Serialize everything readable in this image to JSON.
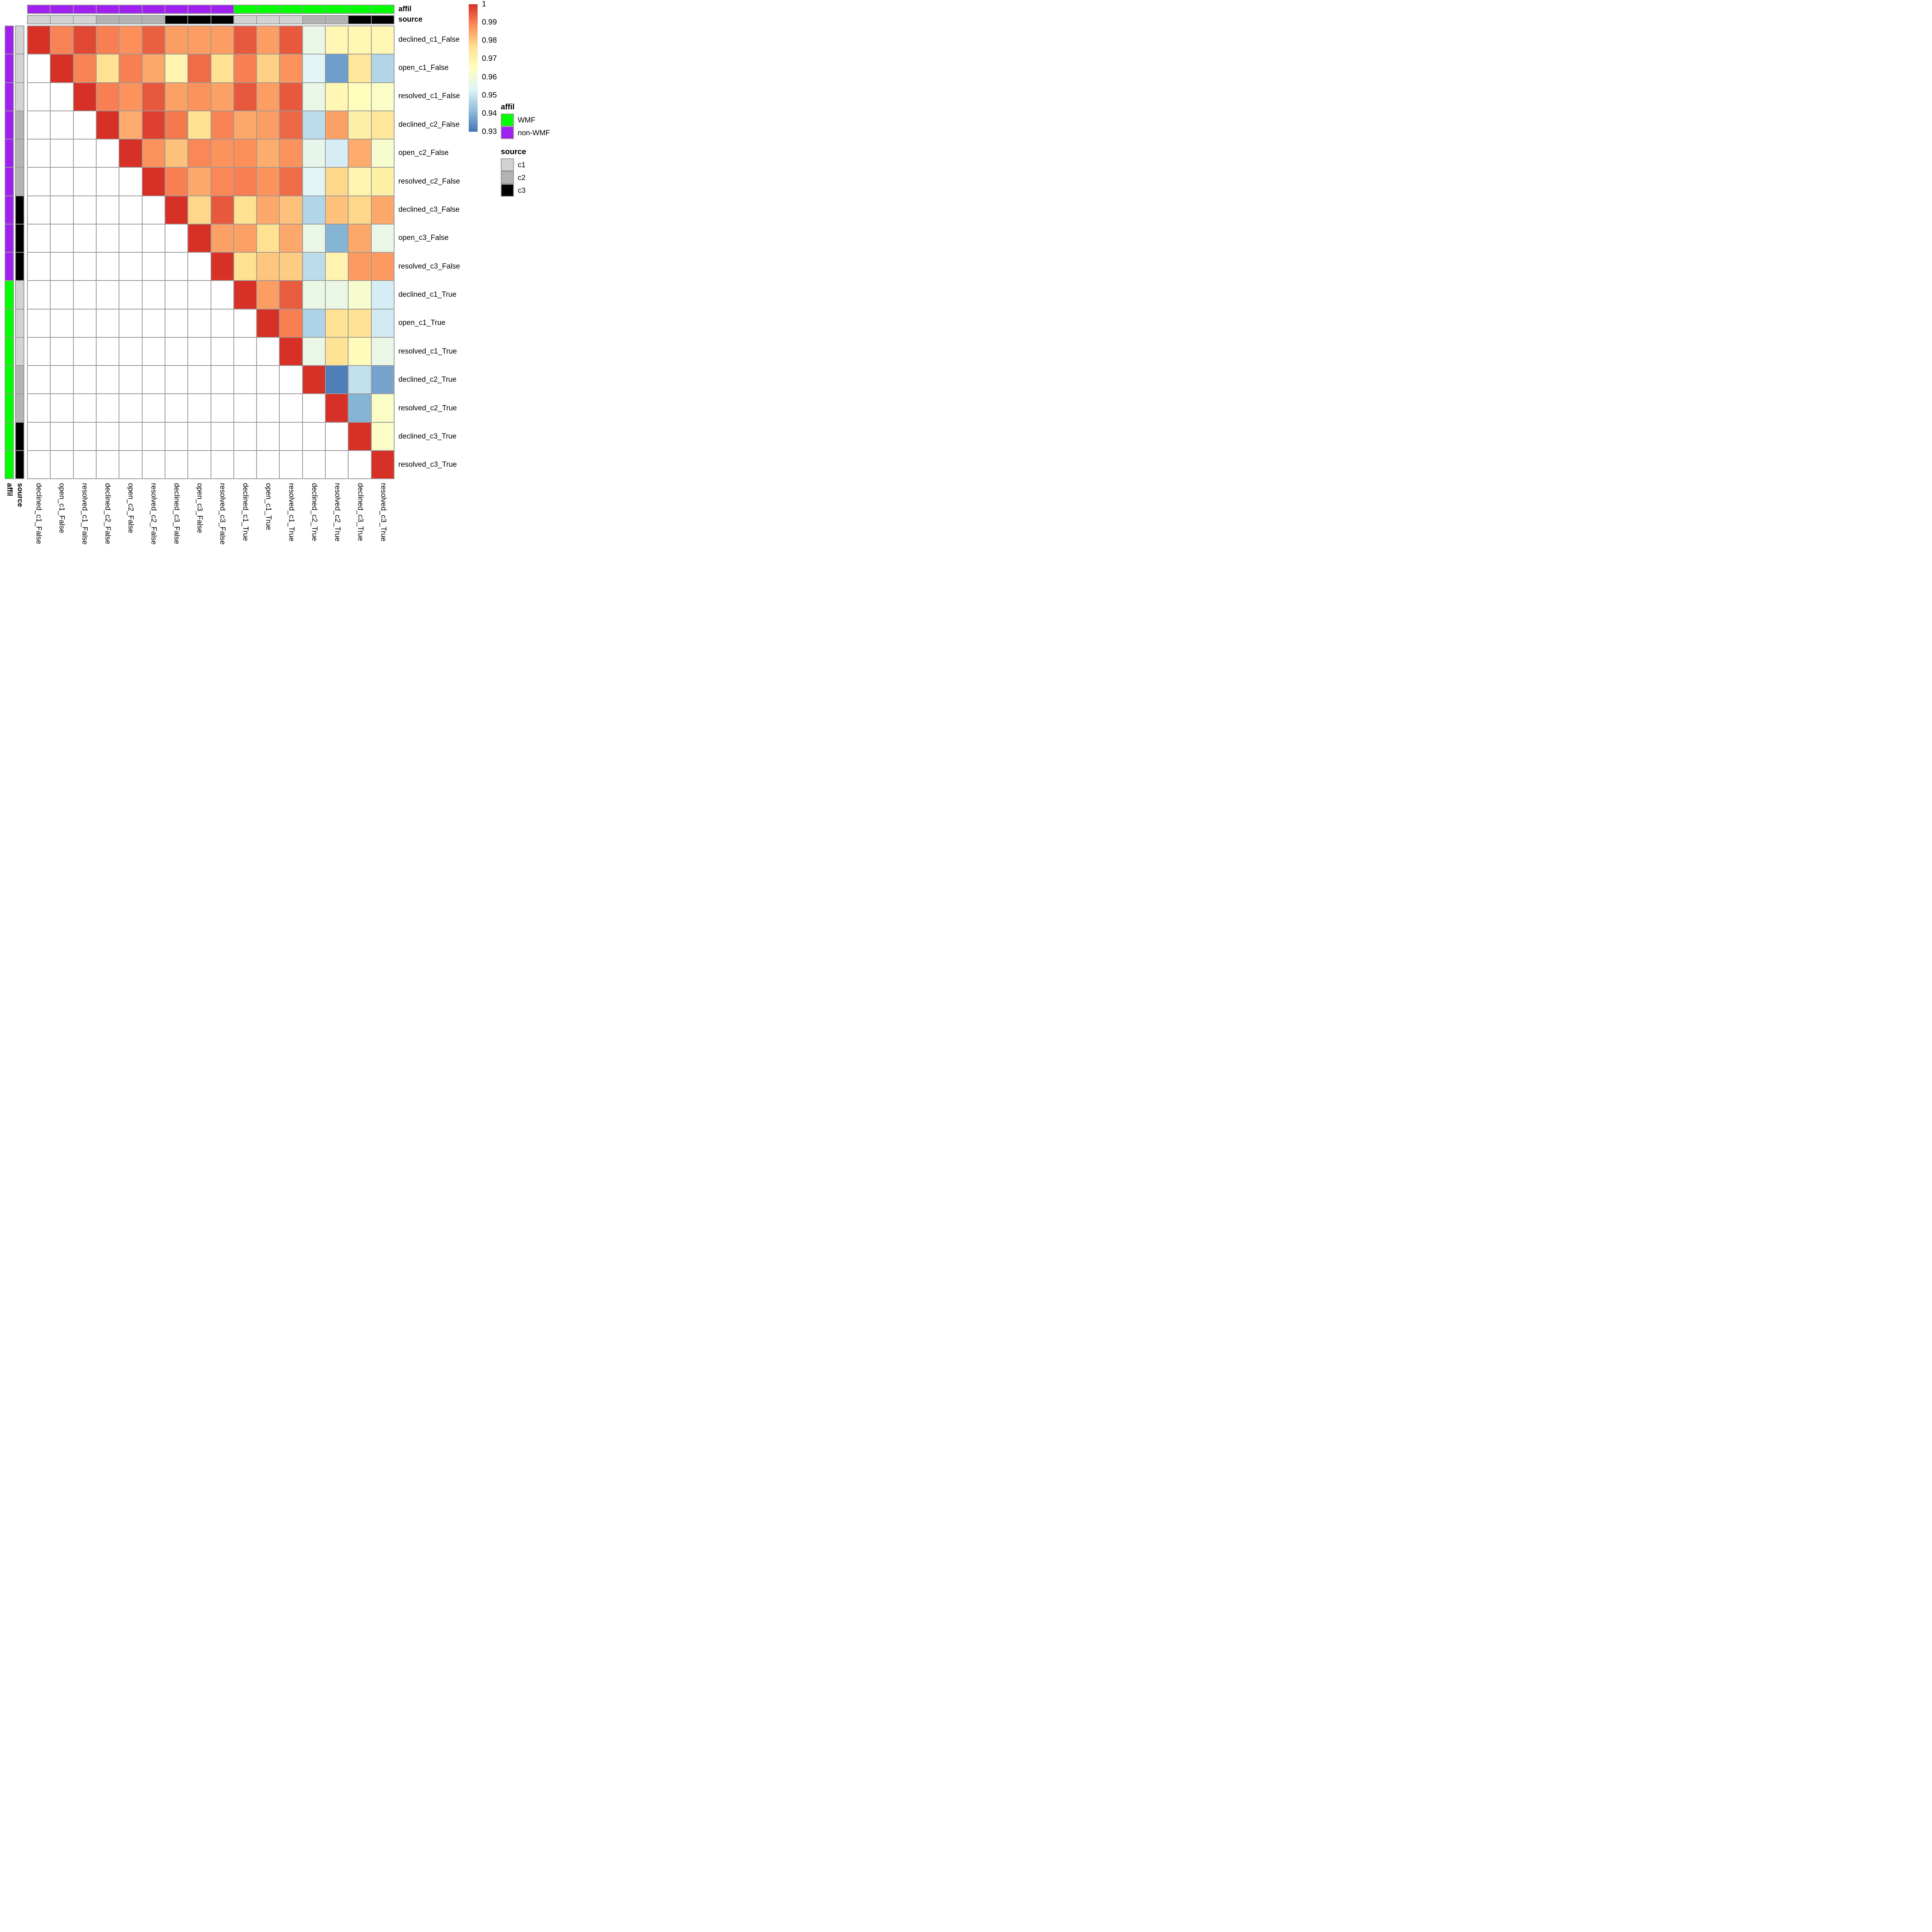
{
  "chart_data": {
    "type": "heatmap",
    "title": "",
    "xlabel": "",
    "ylabel": "",
    "grid": true,
    "grid_line_color": "#999999",
    "background_color": "#ffffff",
    "labels": [
      "declined_c1_False",
      "open_c1_False",
      "resolved_c1_False",
      "declined_c2_False",
      "open_c2_False",
      "resolved_c2_False",
      "declined_c3_False",
      "open_c3_False",
      "resolved_c3_False",
      "declined_c1_True",
      "open_c1_True",
      "resolved_c1_True",
      "declined_c2_True",
      "resolved_c2_True",
      "declined_c3_True",
      "resolved_c3_True"
    ],
    "value_range": [
      0.93,
      1
    ],
    "colormap": [
      [
        0.93,
        "#4575b4"
      ],
      [
        0.9417,
        "#91bfdb"
      ],
      [
        0.9533,
        "#e0f3f8"
      ],
      [
        0.965,
        "#ffffbf"
      ],
      [
        0.9767,
        "#fee090"
      ],
      [
        0.9883,
        "#fc8d59"
      ],
      [
        1.0,
        "#d73027"
      ]
    ],
    "colorbar_ticks": [
      "1",
      "0.99",
      "0.98",
      "0.97",
      "0.96",
      "0.95",
      "0.94",
      "0.93"
    ],
    "matrix": [
      [
        1,
        0.9895,
        0.997,
        0.99,
        0.988,
        0.994,
        0.986,
        0.986,
        0.986,
        0.995,
        0.986,
        0.995,
        0.957,
        0.968,
        0.968,
        0.968
      ],
      [
        null,
        1,
        0.9895,
        0.9765,
        0.99,
        0.9845,
        0.969,
        0.9925,
        0.9765,
        0.99,
        0.979,
        0.9875,
        0.954,
        0.9365,
        0.974,
        0.9465
      ],
      [
        null,
        null,
        1,
        0.99,
        0.9875,
        0.995,
        0.9855,
        0.9875,
        0.9855,
        0.995,
        0.986,
        0.995,
        0.957,
        0.968,
        0.9655,
        0.9635
      ],
      [
        null,
        null,
        null,
        1,
        0.984,
        0.998,
        0.991,
        0.9765,
        0.9895,
        0.9845,
        0.986,
        0.993,
        0.948,
        0.9855,
        0.971,
        0.974
      ],
      [
        null,
        null,
        null,
        null,
        1,
        0.9875,
        0.981,
        0.989,
        0.9875,
        0.988,
        0.984,
        0.9875,
        0.956,
        0.952,
        0.984,
        0.962
      ],
      [
        null,
        null,
        null,
        null,
        null,
        1,
        0.99,
        0.9845,
        0.989,
        0.99,
        0.9875,
        0.9925,
        0.954,
        0.978,
        0.969,
        0.971
      ],
      [
        null,
        null,
        null,
        null,
        null,
        null,
        1,
        0.978,
        0.995,
        0.9765,
        0.9845,
        0.981,
        0.9465,
        0.981,
        0.978,
        0.9845
      ],
      [
        null,
        null,
        null,
        null,
        null,
        null,
        null,
        1,
        0.9855,
        0.9855,
        0.9765,
        0.9845,
        0.957,
        0.94,
        0.9845,
        0.957
      ],
      [
        null,
        null,
        null,
        null,
        null,
        null,
        null,
        null,
        1,
        0.9765,
        0.9805,
        0.9795,
        0.948,
        0.969,
        0.9865,
        0.9865
      ],
      [
        null,
        null,
        null,
        null,
        null,
        null,
        null,
        null,
        null,
        1,
        0.986,
        0.9945,
        0.957,
        0.957,
        0.962,
        0.952
      ],
      [
        null,
        null,
        null,
        null,
        null,
        null,
        null,
        null,
        null,
        null,
        1,
        0.99,
        0.946,
        0.9755,
        0.9755,
        0.951
      ],
      [
        null,
        null,
        null,
        null,
        null,
        null,
        null,
        null,
        null,
        null,
        null,
        1,
        0.957,
        0.9755,
        0.966,
        0.957
      ],
      [
        null,
        null,
        null,
        null,
        null,
        null,
        null,
        null,
        null,
        null,
        null,
        null,
        1,
        0.9315,
        0.949,
        0.9375
      ],
      [
        null,
        null,
        null,
        null,
        null,
        null,
        null,
        null,
        null,
        null,
        null,
        null,
        null,
        1,
        0.94,
        0.9635
      ],
      [
        null,
        null,
        null,
        null,
        null,
        null,
        null,
        null,
        null,
        null,
        null,
        null,
        null,
        null,
        1,
        0.9635
      ],
      [
        null,
        null,
        null,
        null,
        null,
        null,
        null,
        null,
        null,
        null,
        null,
        null,
        null,
        null,
        null,
        1
      ]
    ],
    "row_annotations": {
      "affil": [
        "non-WMF",
        "non-WMF",
        "non-WMF",
        "non-WMF",
        "non-WMF",
        "non-WMF",
        "non-WMF",
        "non-WMF",
        "non-WMF",
        "WMF",
        "WMF",
        "WMF",
        "WMF",
        "WMF",
        "WMF",
        "WMF"
      ],
      "source": [
        "c1",
        "c1",
        "c1",
        "c2",
        "c2",
        "c2",
        "c3",
        "c3",
        "c3",
        "c1",
        "c1",
        "c1",
        "c2",
        "c2",
        "c3",
        "c3"
      ]
    },
    "annotation_colors": {
      "affil": {
        "WMF": "#00ff00",
        "non-WMF": "#a020f0"
      },
      "source": {
        "c1": "#d3d3d3",
        "c2": "#b3b3b3",
        "c3": "#000000"
      }
    },
    "annotation_axis_labels": {
      "affil": "affil",
      "source": "source"
    },
    "legends": {
      "affil": {
        "title": "affil",
        "items": [
          "WMF",
          "non-WMF"
        ]
      },
      "source": {
        "title": "source",
        "items": [
          "c1",
          "c2",
          "c3"
        ]
      }
    },
    "legend_position": "right"
  }
}
